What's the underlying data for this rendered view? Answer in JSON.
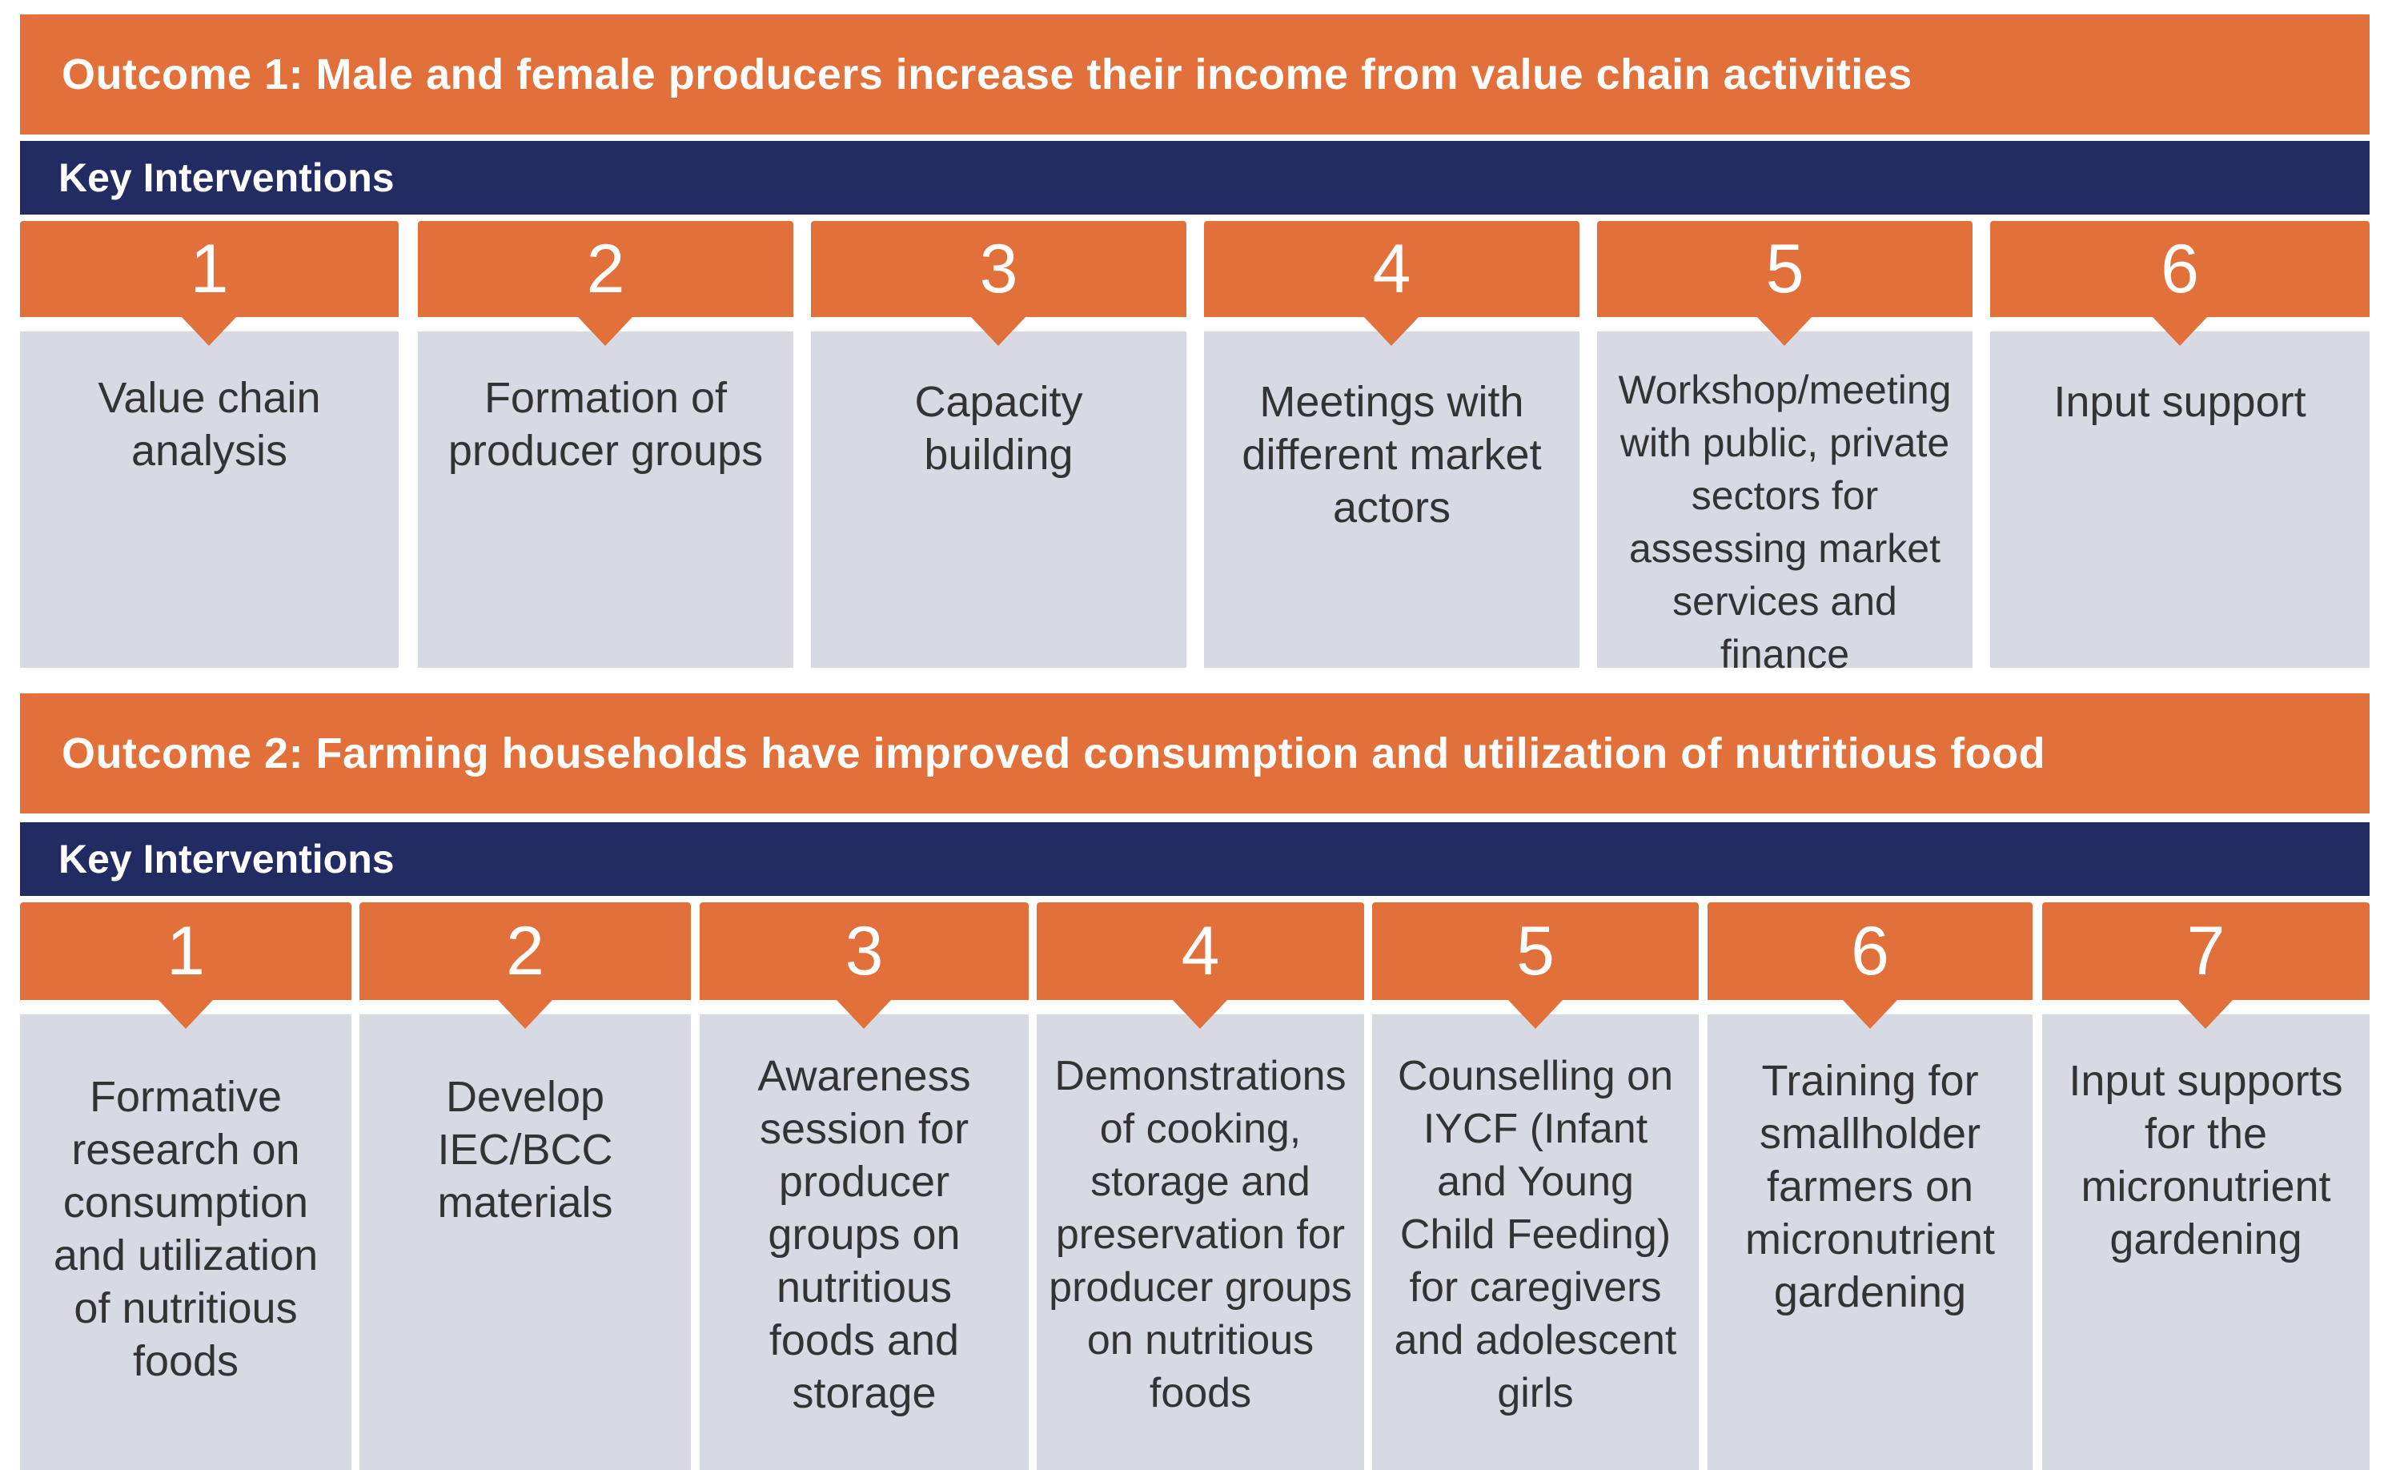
{
  "outcome1": {
    "title": "Outcome 1: Male and female producers increase their income from value chain activities",
    "key_interventions_label": "Key Interventions",
    "interventions": [
      {
        "number": "1",
        "text": "Value chain analysis"
      },
      {
        "number": "2",
        "text": "Formation of producer groups"
      },
      {
        "number": "3",
        "text": "Capacity building"
      },
      {
        "number": "4",
        "text": "Meetings with different market actors"
      },
      {
        "number": "5",
        "text": "Workshop/meeting with public, private sectors for assessing market services and finance"
      },
      {
        "number": "6",
        "text": "Input support"
      }
    ]
  },
  "outcome2": {
    "title": "Outcome 2: Farming households have improved consumption and utilization of nutritious food",
    "key_interventions_label": "Key Interventions",
    "interventions": [
      {
        "number": "1",
        "text": "Formative research on consumption and utilization of nutritious foods"
      },
      {
        "number": "2",
        "text": "Develop IEC/BCC materials"
      },
      {
        "number": "3",
        "text": "Awareness session for producer groups on nutritious foods and storage"
      },
      {
        "number": "4",
        "text": "Demonstrations of cooking, storage and preservation for producer groups on nutritious foods"
      },
      {
        "number": "5",
        "text": "Counselling on IYCF (Infant and Young Child Feeding) for caregivers and adolescent girls"
      },
      {
        "number": "6",
        "text": "Training for smallholder farmers on micronutrient gardening"
      },
      {
        "number": "7",
        "text": "Input supports for the micronutrient gardening"
      }
    ]
  },
  "colors": {
    "orange": "#e2703a",
    "navy": "#232c62",
    "card_gray": "#d8dae3"
  }
}
